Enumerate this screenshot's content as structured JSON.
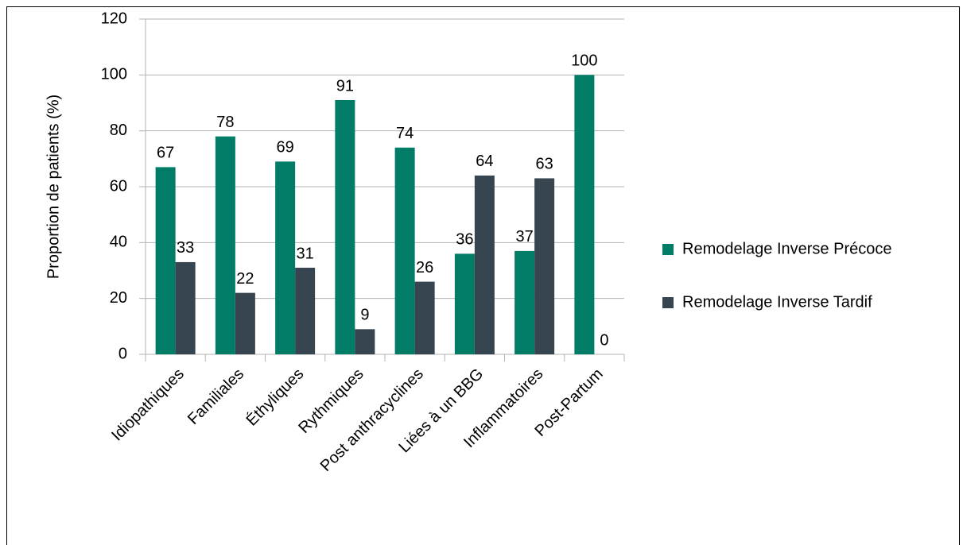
{
  "chart_data": {
    "type": "bar",
    "y_label": "Proportion de patients (%)",
    "categories": [
      "Idiopathiques",
      "Familiales",
      "Éthyliques",
      "Rythmiques",
      "Post anthracyclines",
      "Liées à un BBG",
      "Inflammatoires",
      "Post-Partum"
    ],
    "series": [
      {
        "name": "Remodelage Inverse Précoce",
        "color": "#007c67",
        "values": [
          67,
          78,
          69,
          91,
          74,
          36,
          37,
          100
        ]
      },
      {
        "name": "Remodelage Inverse Tardif",
        "color": "#36454f",
        "values": [
          33,
          22,
          31,
          9,
          26,
          64,
          63,
          0
        ]
      }
    ],
    "ylim": [
      0,
      120
    ],
    "yticks": [
      0,
      20,
      40,
      60,
      80,
      100,
      120
    ],
    "grid": true,
    "legend": "right"
  }
}
